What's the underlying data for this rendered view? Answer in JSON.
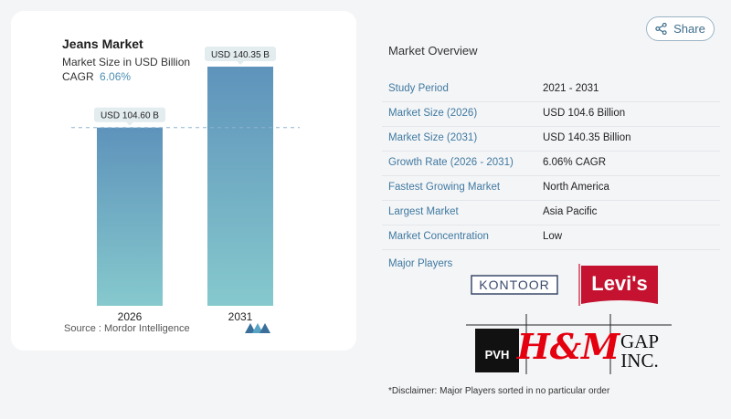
{
  "chart": {
    "title": "Jeans Market",
    "subtitle": "Market Size in USD Billion",
    "cagr_label": "CAGR",
    "cagr_value": "6.06%",
    "source": "Source :  Mordor Intelligence"
  },
  "chart_data": {
    "type": "bar",
    "categories": [
      "2026",
      "2031"
    ],
    "values": [
      104.6,
      140.35
    ],
    "data_labels": [
      "USD 104.60 B",
      "USD 140.35 B"
    ],
    "title": "Jeans Market",
    "subtitle": "Market Size in USD Billion",
    "ylim": [
      0,
      150
    ],
    "grid": false,
    "reference_line": "dashed line at first bar value",
    "colors": {
      "bar_top": "#5e93bb",
      "bar_bottom": "#86c9cd",
      "label_bg": "#e3ecef",
      "dashed": "#8eb2cf"
    }
  },
  "header": {
    "share_label": "Share",
    "share_icon": "share-icon"
  },
  "overview": {
    "title": "Market Overview",
    "rows": [
      {
        "label": "Study Period",
        "value": "2021 - 2031"
      },
      {
        "label": "Market Size (2026)",
        "value": "USD 104.6 Billion"
      },
      {
        "label": "Market Size (2031)",
        "value": "USD 140.35 Billion"
      },
      {
        "label": "Growth Rate (2026 - 2031)",
        "value": "6.06% CAGR"
      },
      {
        "label": "Fastest Growing Market",
        "value": "North America"
      },
      {
        "label": "Largest Market",
        "value": "Asia Pacific"
      },
      {
        "label": "Market Concentration",
        "value": "Low"
      }
    ],
    "players_label": "Major Players",
    "players": [
      "KONTOOR",
      "Levi's",
      "PVH",
      "H&M",
      "GAP INC."
    ],
    "disclaimer": "*Disclaimer: Major Players sorted in no particular order"
  },
  "colors": {
    "accent": "#3f79a0",
    "levis_red": "#c41230",
    "hm_red": "#e50010"
  }
}
